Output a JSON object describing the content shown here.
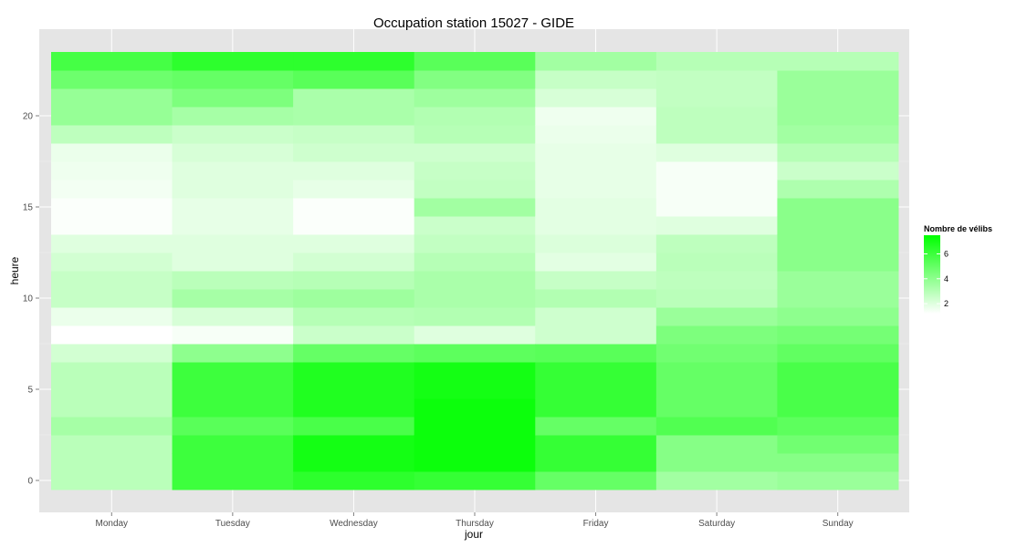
{
  "chart_data": {
    "type": "heatmap",
    "title": "Occupation station 15027 - GIDE",
    "xlabel": "jour",
    "ylabel": "heure",
    "categories": [
      "Monday",
      "Tuesday",
      "Wednesday",
      "Thursday",
      "Friday",
      "Saturday",
      "Sunday"
    ],
    "hours": [
      0,
      1,
      2,
      3,
      4,
      5,
      6,
      7,
      8,
      9,
      10,
      11,
      12,
      13,
      14,
      15,
      16,
      17,
      18,
      19,
      20,
      21,
      22,
      23
    ],
    "y_ticks": [
      0,
      5,
      10,
      15,
      20
    ],
    "values": [
      [
        2.9,
        2.9,
        2.9,
        3.4,
        2.9,
        2.9,
        2.9,
        2.3,
        1.2,
        1.7,
        2.6,
        2.6,
        2.3,
        2.0,
        1.3,
        1.3,
        1.5,
        1.6,
        1.7,
        2.8,
        3.8,
        3.8,
        4.8,
        5.8
      ],
      [
        6.0,
        6.0,
        6.0,
        5.3,
        6.0,
        6.0,
        6.0,
        4.0,
        1.4,
        2.2,
        3.4,
        2.9,
        2.0,
        2.0,
        1.8,
        1.8,
        2.0,
        2.0,
        2.2,
        2.5,
        3.4,
        4.4,
        5.0,
        6.4
      ],
      [
        6.4,
        7.0,
        7.0,
        5.7,
        6.7,
        6.7,
        6.7,
        5.0,
        2.5,
        3.0,
        3.6,
        3.0,
        2.3,
        2.0,
        1.3,
        1.3,
        1.8,
        2.0,
        2.4,
        2.6,
        3.3,
        3.3,
        5.3,
        6.4
      ],
      [
        6.2,
        7.2,
        7.2,
        7.2,
        7.2,
        7.0,
        7.0,
        5.2,
        2.0,
        3.1,
        3.3,
        3.3,
        3.0,
        2.7,
        2.5,
        3.5,
        2.7,
        2.6,
        2.4,
        3.0,
        3.1,
        3.6,
        4.3,
        5.3
      ],
      [
        5.0,
        6.2,
        6.2,
        5.0,
        6.2,
        6.2,
        6.2,
        5.3,
        2.4,
        2.4,
        3.1,
        2.6,
        1.9,
        2.1,
        1.9,
        1.9,
        1.8,
        1.8,
        1.8,
        1.7,
        1.6,
        2.2,
        2.6,
        3.5
      ],
      [
        3.5,
        4.2,
        4.2,
        5.5,
        5.0,
        5.0,
        5.0,
        4.7,
        4.4,
        3.7,
        2.9,
        2.8,
        2.9,
        2.8,
        2.0,
        1.4,
        1.4,
        1.4,
        2.0,
        2.8,
        2.8,
        2.7,
        2.7,
        3.0
      ],
      [
        3.7,
        4.2,
        4.7,
        5.2,
        5.7,
        5.7,
        5.7,
        5.1,
        4.6,
        4.0,
        3.7,
        3.7,
        4.1,
        4.1,
        4.1,
        4.1,
        3.2,
        2.5,
        3.0,
        3.5,
        3.7,
        3.7,
        3.7,
        3.0
      ]
    ],
    "color_scale": {
      "low": "#ffffff",
      "high": "#00ff00",
      "min": 1.2,
      "max": 7.5
    },
    "legend": {
      "title": "Nombre de vélibs",
      "ticks": [
        2,
        4,
        6
      ],
      "placement": "right"
    },
    "grid": true,
    "panel_background": "#e5e5e5"
  }
}
